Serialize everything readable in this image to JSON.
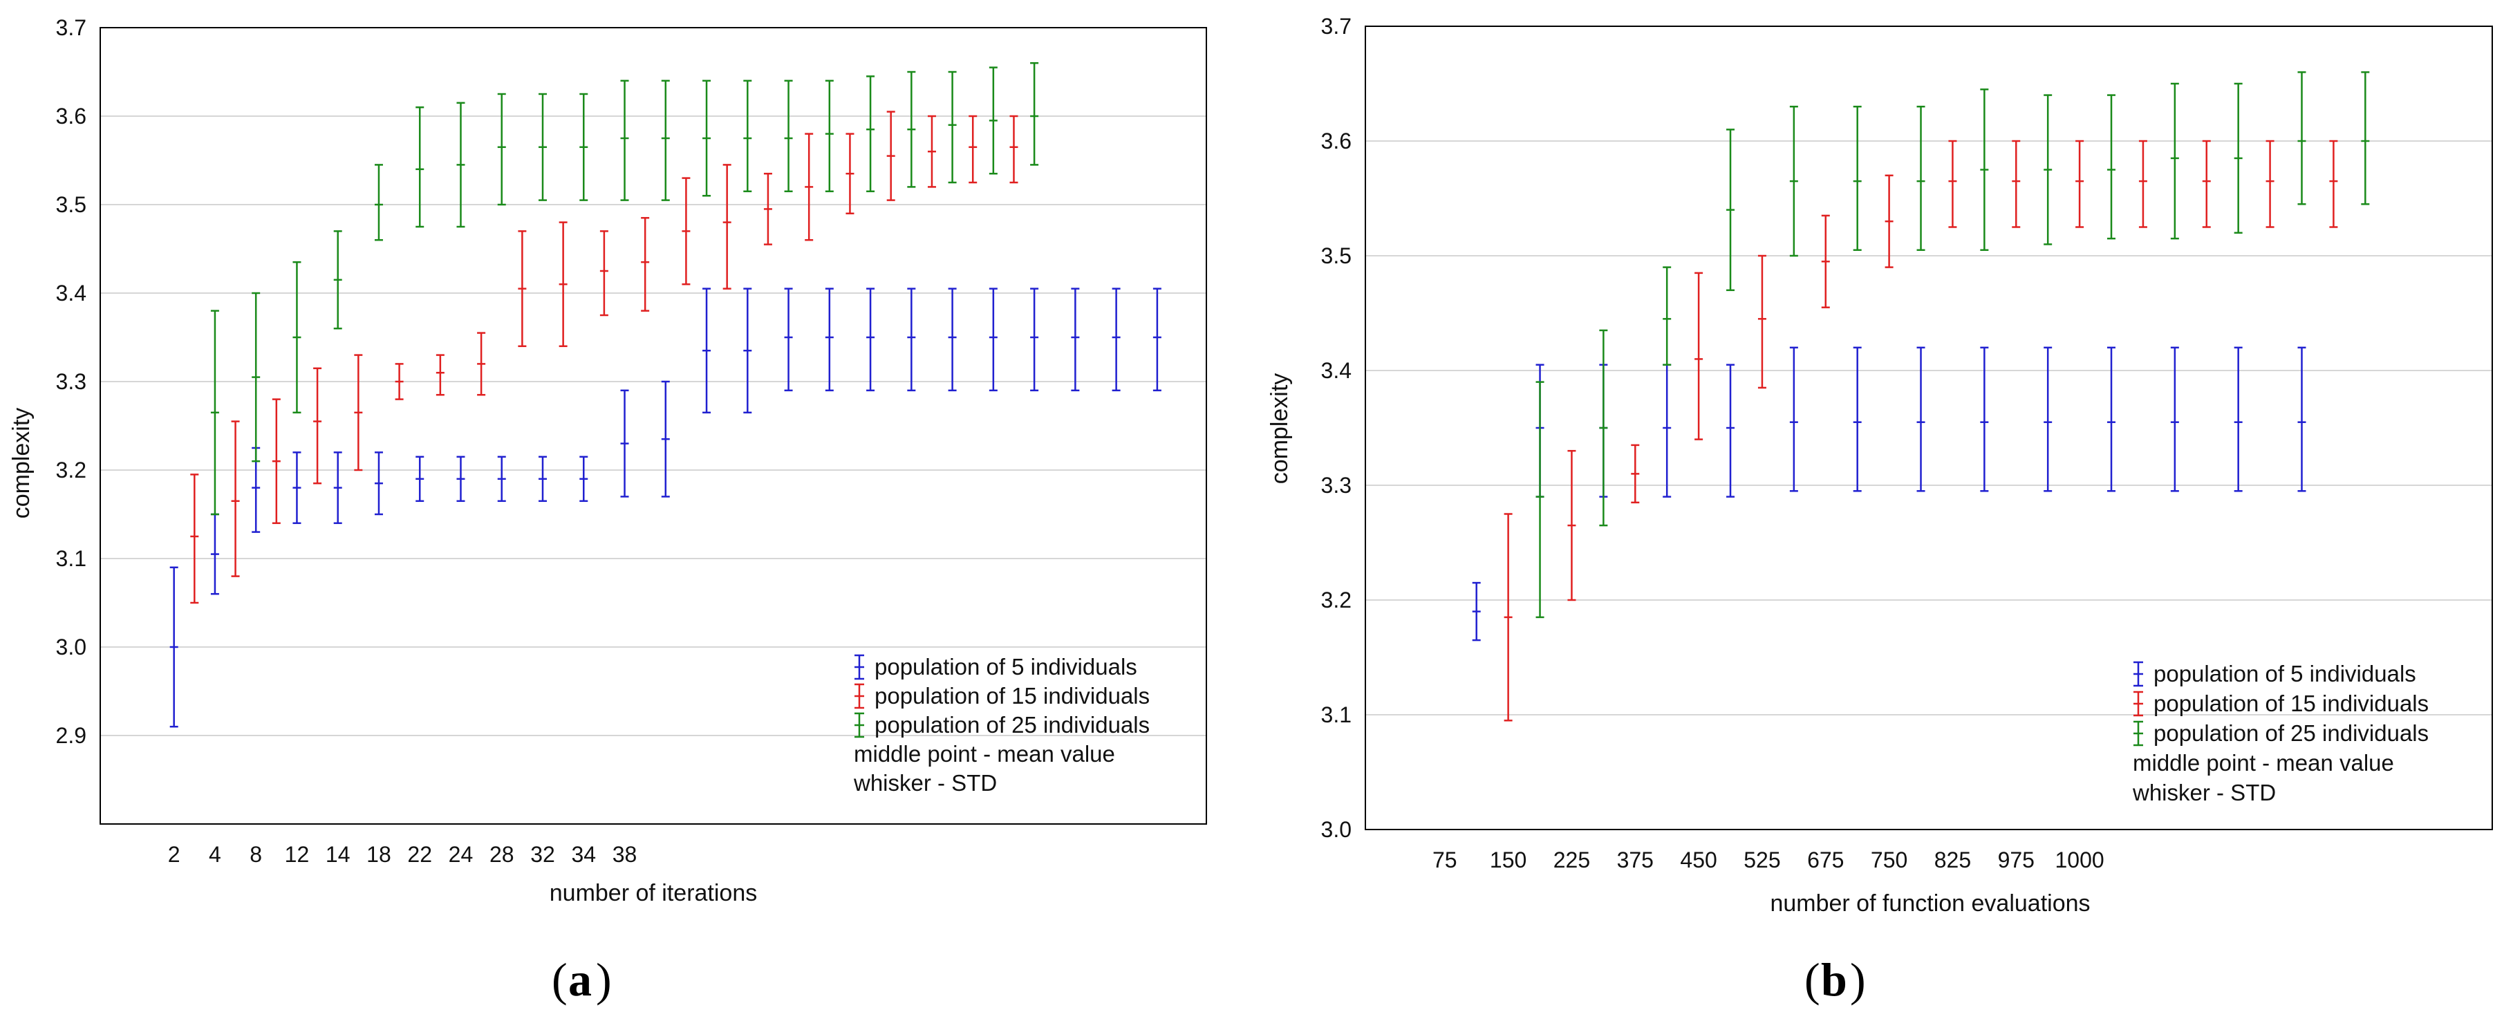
{
  "chart_data": [
    {
      "type": "errorbar",
      "panel": "a",
      "caption": "a",
      "xlabel": "number of iterations",
      "ylabel": "complexity",
      "ylim": [
        2.8,
        3.7
      ],
      "yticks": [
        "2.9",
        "3.0",
        "3.1",
        "3.2",
        "3.3",
        "3.4",
        "3.5",
        "3.6",
        "3.7"
      ],
      "categories": [
        "2",
        "4",
        "8",
        "12",
        "14",
        "18",
        "22",
        "24",
        "28",
        "32",
        "34",
        "38"
      ],
      "grid": true,
      "legend_position": "bottom-right",
      "legend": [
        "population of 5 individuals",
        "population of 15 individuals",
        "population of 25 individuals"
      ],
      "notes": [
        "middle point - mean value",
        "whisker - STD"
      ],
      "series": [
        {
          "name": "population of 5 individuals",
          "color": "#2020d0",
          "x": [
            2,
            3,
            4,
            5,
            6,
            7,
            8,
            9,
            10,
            11,
            12,
            13,
            14,
            15,
            16,
            17,
            18,
            19,
            20,
            21,
            22,
            23,
            24,
            25,
            26
          ],
          "mean": [
            3.0,
            3.105,
            3.18,
            3.18,
            3.18,
            3.185,
            3.19,
            3.19,
            3.19,
            3.19,
            3.19,
            3.23,
            3.235,
            3.335,
            3.335,
            3.35,
            3.35,
            3.35,
            3.35,
            3.35,
            3.35,
            3.35,
            3.35,
            3.35,
            3.35
          ],
          "low": [
            2.91,
            3.06,
            3.13,
            3.14,
            3.14,
            3.15,
            3.165,
            3.165,
            3.165,
            3.165,
            3.165,
            3.17,
            3.17,
            3.265,
            3.265,
            3.29,
            3.29,
            3.29,
            3.29,
            3.29,
            3.29,
            3.29,
            3.29,
            3.29,
            3.29
          ],
          "high": [
            3.09,
            3.15,
            3.225,
            3.22,
            3.22,
            3.22,
            3.215,
            3.215,
            3.215,
            3.215,
            3.215,
            3.29,
            3.3,
            3.405,
            3.405,
            3.405,
            3.405,
            3.405,
            3.405,
            3.405,
            3.405,
            3.405,
            3.405,
            3.405,
            3.405
          ]
        },
        {
          "name": "population of 15 individuals",
          "color": "#e02020",
          "x": [
            2.5,
            3.5,
            4.5,
            5.5,
            6.5,
            7.5,
            8.5,
            9.5,
            10.5,
            11.5,
            12.5,
            13.5,
            14.5,
            15.5,
            16.5,
            17.5,
            18.5,
            19.5,
            20.5,
            21.5,
            22.5
          ],
          "mean": [
            3.125,
            3.165,
            3.21,
            3.255,
            3.265,
            3.3,
            3.31,
            3.32,
            3.405,
            3.41,
            3.425,
            3.435,
            3.47,
            3.48,
            3.495,
            3.52,
            3.535,
            3.555,
            3.56,
            3.565,
            3.565
          ],
          "low": [
            3.05,
            3.08,
            3.14,
            3.185,
            3.2,
            3.28,
            3.285,
            3.285,
            3.34,
            3.34,
            3.375,
            3.38,
            3.41,
            3.405,
            3.455,
            3.46,
            3.49,
            3.505,
            3.52,
            3.525,
            3.525
          ],
          "high": [
            3.195,
            3.255,
            3.28,
            3.315,
            3.33,
            3.32,
            3.33,
            3.355,
            3.47,
            3.48,
            3.47,
            3.485,
            3.53,
            3.545,
            3.535,
            3.58,
            3.58,
            3.605,
            3.6,
            3.6,
            3.6
          ]
        },
        {
          "name": "population of 25 individuals",
          "color": "#1a8a1a",
          "x": [
            3,
            4,
            5,
            6,
            7,
            8,
            9,
            10,
            11,
            12,
            13,
            14,
            15,
            16,
            17,
            18,
            19,
            20,
            21,
            22,
            23
          ],
          "mean": [
            3.265,
            3.305,
            3.35,
            3.415,
            3.5,
            3.54,
            3.545,
            3.565,
            3.565,
            3.565,
            3.575,
            3.575,
            3.575,
            3.575,
            3.575,
            3.58,
            3.585,
            3.585,
            3.59,
            3.595,
            3.6
          ],
          "low": [
            3.15,
            3.21,
            3.265,
            3.36,
            3.46,
            3.475,
            3.475,
            3.5,
            3.505,
            3.505,
            3.505,
            3.505,
            3.51,
            3.515,
            3.515,
            3.515,
            3.515,
            3.52,
            3.525,
            3.535,
            3.545
          ],
          "high": [
            3.38,
            3.4,
            3.435,
            3.47,
            3.545,
            3.61,
            3.615,
            3.625,
            3.625,
            3.625,
            3.64,
            3.64,
            3.64,
            3.64,
            3.64,
            3.64,
            3.645,
            3.65,
            3.65,
            3.655,
            3.66
          ]
        }
      ]
    },
    {
      "type": "errorbar",
      "panel": "b",
      "caption": "b",
      "xlabel": "number of function evaluations",
      "ylabel": "complexity",
      "ylim": [
        3.0,
        3.7
      ],
      "yticks": [
        "3.0",
        "3.1",
        "3.2",
        "3.3",
        "3.4",
        "3.5",
        "3.6",
        "3.7"
      ],
      "categories": [
        "75",
        "150",
        "225",
        "375",
        "450",
        "525",
        "675",
        "750",
        "825",
        "975",
        "1000"
      ],
      "grid": true,
      "legend_position": "bottom-right",
      "legend": [
        "population of 5 individuals",
        "population of 15 individuals",
        "population of 25 individuals"
      ],
      "notes": [
        "middle point - mean value",
        "whisker - STD"
      ],
      "series": [
        {
          "name": "population of 5 individuals",
          "color": "#2020d0",
          "x": [
            1,
            2,
            3,
            4,
            5,
            6,
            7,
            8,
            9,
            10,
            11,
            12,
            13,
            14
          ],
          "mean": [
            3.19,
            3.35,
            3.35,
            3.35,
            3.35,
            3.355,
            3.355,
            3.355,
            3.355,
            3.355,
            3.355,
            3.355,
            3.355,
            3.355
          ],
          "low": [
            3.165,
            3.29,
            3.29,
            3.29,
            3.29,
            3.295,
            3.295,
            3.295,
            3.295,
            3.295,
            3.295,
            3.295,
            3.295,
            3.295
          ],
          "high": [
            3.215,
            3.405,
            3.405,
            3.405,
            3.405,
            3.42,
            3.42,
            3.42,
            3.42,
            3.42,
            3.42,
            3.42,
            3.42,
            3.42
          ]
        },
        {
          "name": "population of 15 individuals",
          "color": "#e02020",
          "x": [
            1.5,
            2.5,
            3.5,
            4.5,
            5.5,
            6.5,
            7.5,
            8.5,
            9.5,
            10.5,
            11.5,
            12.5,
            13.5,
            14.5
          ],
          "mean": [
            3.185,
            3.265,
            3.31,
            3.41,
            3.445,
            3.495,
            3.53,
            3.565,
            3.565,
            3.565,
            3.565,
            3.565,
            3.565,
            3.565
          ],
          "low": [
            3.095,
            3.2,
            3.285,
            3.34,
            3.385,
            3.455,
            3.49,
            3.525,
            3.525,
            3.525,
            3.525,
            3.525,
            3.525,
            3.525
          ],
          "high": [
            3.275,
            3.33,
            3.335,
            3.485,
            3.5,
            3.535,
            3.57,
            3.6,
            3.6,
            3.6,
            3.6,
            3.6,
            3.6,
            3.6
          ]
        },
        {
          "name": "population of 25 individuals",
          "color": "#1a8a1a",
          "x": [
            2,
            3,
            4,
            5,
            6,
            7,
            8,
            9,
            10,
            11,
            12,
            13,
            14,
            15
          ],
          "mean": [
            3.29,
            3.35,
            3.445,
            3.54,
            3.565,
            3.565,
            3.565,
            3.575,
            3.575,
            3.575,
            3.585,
            3.585,
            3.6,
            3.6
          ],
          "low": [
            3.185,
            3.265,
            3.405,
            3.47,
            3.5,
            3.505,
            3.505,
            3.505,
            3.51,
            3.515,
            3.515,
            3.52,
            3.545,
            3.545
          ],
          "high": [
            3.39,
            3.435,
            3.49,
            3.61,
            3.63,
            3.63,
            3.63,
            3.645,
            3.64,
            3.64,
            3.65,
            3.65,
            3.66,
            3.66
          ]
        }
      ]
    }
  ]
}
